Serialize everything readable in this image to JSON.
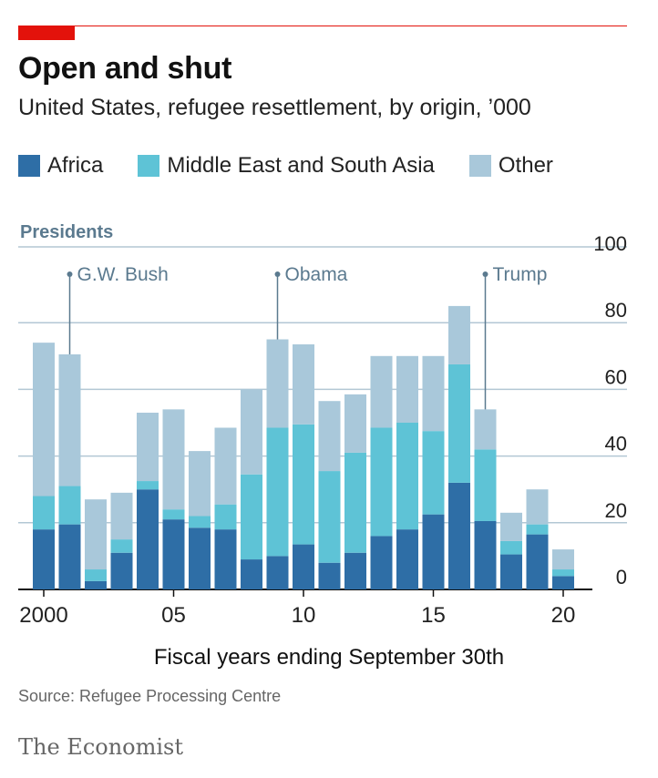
{
  "header": {
    "title": "Open and shut",
    "subtitle": "United States, refugee resettlement, by origin, ’000"
  },
  "footer": {
    "xtitle": "Fiscal years ending September 30th",
    "source": "Source: Refugee Processing Centre",
    "brand": "The Economist"
  },
  "colors": {
    "brand_red": "#e3120b",
    "africa": "#2e6ea6",
    "mideast": "#5ec3d6",
    "other": "#a9c8da",
    "grid": "#b3c7d4",
    "annotation": "#5b7a8f"
  },
  "chart_data": {
    "type": "bar",
    "stacked": true,
    "x": [
      2000,
      2001,
      2002,
      2003,
      2004,
      2005,
      2006,
      2007,
      2008,
      2009,
      2010,
      2011,
      2012,
      2013,
      2014,
      2015,
      2016,
      2017,
      2018,
      2019,
      2020
    ],
    "series": [
      {
        "name": "Africa",
        "color": "#2e6ea6",
        "values": [
          18,
          19.5,
          2.5,
          11,
          30,
          21,
          18.5,
          18,
          9,
          10,
          13.5,
          8,
          11,
          16,
          18,
          22.5,
          32,
          20.5,
          10.5,
          16.5,
          4
        ]
      },
      {
        "name": "Middle East and South Asia",
        "color": "#5ec3d6",
        "values": [
          10,
          11.5,
          3.5,
          4,
          2.5,
          3,
          3.5,
          7.5,
          25.5,
          38.5,
          36,
          27.5,
          30,
          32.5,
          32,
          25,
          35.5,
          21.5,
          4,
          3,
          2
        ]
      },
      {
        "name": "Other",
        "color": "#a9c8da",
        "values": [
          46,
          39.5,
          21,
          14,
          20.5,
          30,
          19.5,
          23,
          25.5,
          26.5,
          24,
          21,
          17.5,
          21.5,
          20,
          22.5,
          17.5,
          12,
          8.5,
          10.5,
          6
        ]
      }
    ],
    "ylim": [
      0,
      100
    ],
    "yticks": [
      0,
      20,
      40,
      60,
      80,
      100
    ],
    "xtick_labels": [
      {
        "year": 2000,
        "label": "2000"
      },
      {
        "year": 2005,
        "label": "05"
      },
      {
        "year": 2010,
        "label": "10"
      },
      {
        "year": 2015,
        "label": "15"
      },
      {
        "year": 2020,
        "label": "20"
      }
    ],
    "xlabel": "Fiscal years ending September 30th",
    "ylabel": "",
    "grid": true,
    "legend_position": "top-left",
    "presidents_label": "Presidents",
    "annotations": [
      {
        "label": "G.W. Bush",
        "year": 2001
      },
      {
        "label": "Obama",
        "year": 2009
      },
      {
        "label": "Trump",
        "year": 2017
      }
    ]
  }
}
